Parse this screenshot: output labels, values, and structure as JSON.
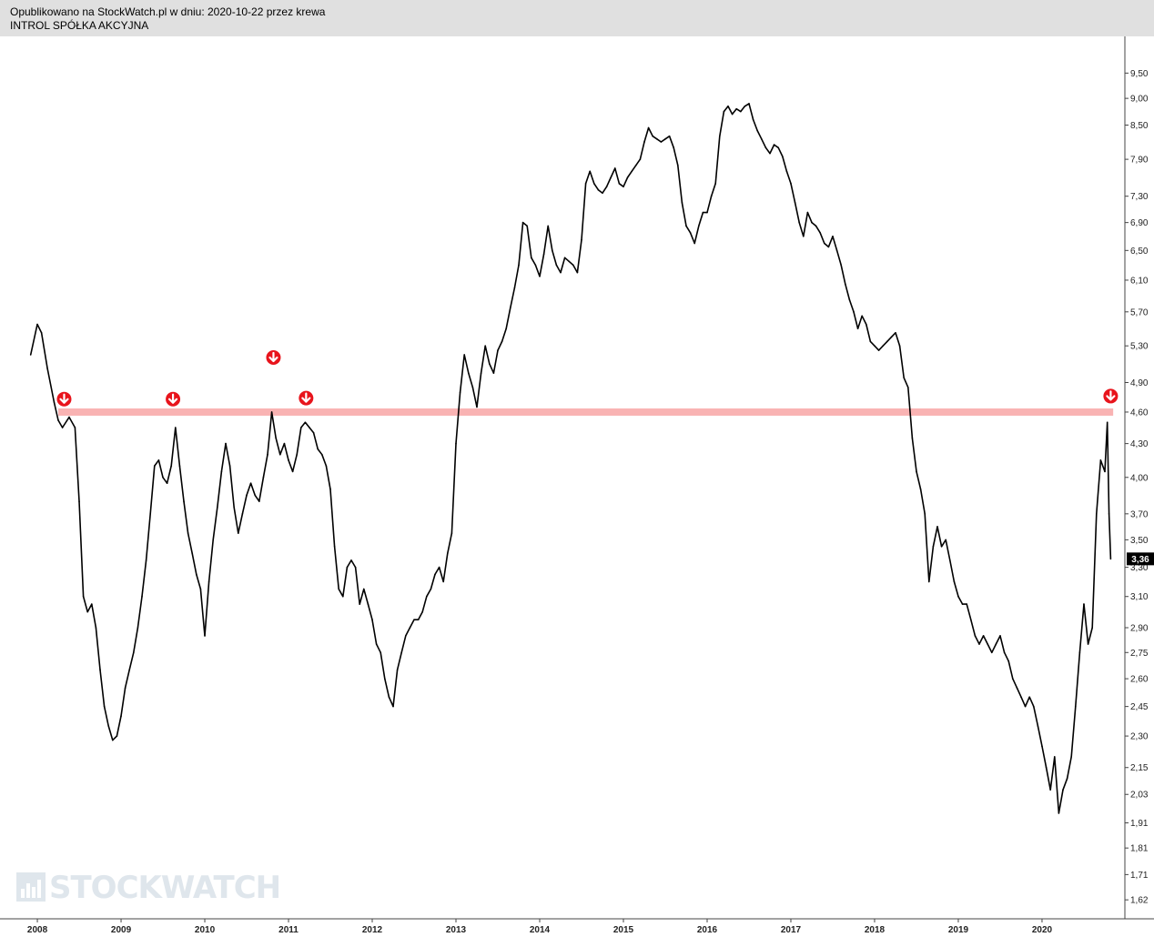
{
  "header": {
    "line1": "Opublikowano na StockWatch.pl w dniu: 2020-10-22 przez krewa",
    "line2": "INTROL SPÓŁKA AKCYJNA"
  },
  "watermark": "STOCKWATCH",
  "colors": {
    "line": "#000000",
    "resistance": "#f9b3b3",
    "arrow": "#e8141c",
    "price_badge": "#000000"
  },
  "chart_data": {
    "type": "line",
    "title": "INTROL SPÓŁKA AKCYJNA",
    "xlabel": "",
    "ylabel": "",
    "y_scale": "log",
    "ylim": [
      1.58,
      10.0
    ],
    "xlim": [
      2007.88,
      2020.87
    ],
    "y_ticks": [
      "9,50",
      "9,00",
      "8,50",
      "7,90",
      "7,30",
      "6,90",
      "6,50",
      "6,10",
      "5,70",
      "5,30",
      "4,90",
      "4,60",
      "4,30",
      "4,00",
      "3,70",
      "3,50",
      "3,30",
      "3,10",
      "2,90",
      "2,75",
      "2,60",
      "2,45",
      "2,30",
      "2,15",
      "2,03",
      "1,91",
      "1,81",
      "1,71",
      "1,62"
    ],
    "x_ticks": [
      "2008",
      "2009",
      "2010",
      "2011",
      "2012",
      "2013",
      "2014",
      "2015",
      "2016",
      "2017",
      "2018",
      "2019",
      "2020"
    ],
    "last_price_label": "3,36",
    "resistance_level": 4.6,
    "sell_signals": [
      {
        "x": 2008.32,
        "y": 4.62
      },
      {
        "x": 2009.62,
        "y": 4.62
      },
      {
        "x": 2010.82,
        "y": 5.05
      },
      {
        "x": 2011.21,
        "y": 4.63
      },
      {
        "x": 2020.82,
        "y": 4.65
      }
    ],
    "series": [
      {
        "values": [
          [
            2007.92,
            5.2
          ],
          [
            2008.0,
            5.55
          ],
          [
            2008.05,
            5.45
          ],
          [
            2008.12,
            5.05
          ],
          [
            2008.2,
            4.7
          ],
          [
            2008.25,
            4.52
          ],
          [
            2008.3,
            4.45
          ],
          [
            2008.38,
            4.55
          ],
          [
            2008.45,
            4.45
          ],
          [
            2008.5,
            3.8
          ],
          [
            2008.55,
            3.1
          ],
          [
            2008.6,
            3.0
          ],
          [
            2008.65,
            3.05
          ],
          [
            2008.7,
            2.9
          ],
          [
            2008.75,
            2.65
          ],
          [
            2008.8,
            2.45
          ],
          [
            2008.85,
            2.35
          ],
          [
            2008.9,
            2.28
          ],
          [
            2008.95,
            2.3
          ],
          [
            2009.0,
            2.4
          ],
          [
            2009.05,
            2.55
          ],
          [
            2009.1,
            2.65
          ],
          [
            2009.15,
            2.75
          ],
          [
            2009.2,
            2.9
          ],
          [
            2009.25,
            3.1
          ],
          [
            2009.3,
            3.35
          ],
          [
            2009.35,
            3.7
          ],
          [
            2009.4,
            4.1
          ],
          [
            2009.45,
            4.15
          ],
          [
            2009.5,
            4.0
          ],
          [
            2009.55,
            3.95
          ],
          [
            2009.6,
            4.1
          ],
          [
            2009.65,
            4.45
          ],
          [
            2009.7,
            4.1
          ],
          [
            2009.75,
            3.8
          ],
          [
            2009.8,
            3.55
          ],
          [
            2009.85,
            3.4
          ],
          [
            2009.9,
            3.25
          ],
          [
            2009.95,
            3.15
          ],
          [
            2010.0,
            2.85
          ],
          [
            2010.05,
            3.2
          ],
          [
            2010.1,
            3.5
          ],
          [
            2010.15,
            3.75
          ],
          [
            2010.2,
            4.05
          ],
          [
            2010.25,
            4.3
          ],
          [
            2010.3,
            4.1
          ],
          [
            2010.35,
            3.75
          ],
          [
            2010.4,
            3.55
          ],
          [
            2010.45,
            3.7
          ],
          [
            2010.5,
            3.85
          ],
          [
            2010.55,
            3.95
          ],
          [
            2010.6,
            3.85
          ],
          [
            2010.65,
            3.8
          ],
          [
            2010.7,
            4.0
          ],
          [
            2010.75,
            4.2
          ],
          [
            2010.8,
            4.6
          ],
          [
            2010.85,
            4.35
          ],
          [
            2010.9,
            4.2
          ],
          [
            2010.95,
            4.3
          ],
          [
            2011.0,
            4.15
          ],
          [
            2011.05,
            4.05
          ],
          [
            2011.1,
            4.2
          ],
          [
            2011.15,
            4.45
          ],
          [
            2011.2,
            4.5
          ],
          [
            2011.25,
            4.45
          ],
          [
            2011.3,
            4.4
          ],
          [
            2011.35,
            4.25
          ],
          [
            2011.4,
            4.2
          ],
          [
            2011.45,
            4.1
          ],
          [
            2011.5,
            3.9
          ],
          [
            2011.55,
            3.45
          ],
          [
            2011.6,
            3.15
          ],
          [
            2011.65,
            3.1
          ],
          [
            2011.7,
            3.3
          ],
          [
            2011.75,
            3.35
          ],
          [
            2011.8,
            3.3
          ],
          [
            2011.85,
            3.05
          ],
          [
            2011.9,
            3.15
          ],
          [
            2011.95,
            3.05
          ],
          [
            2012.0,
            2.95
          ],
          [
            2012.05,
            2.8
          ],
          [
            2012.1,
            2.75
          ],
          [
            2012.15,
            2.6
          ],
          [
            2012.2,
            2.5
          ],
          [
            2012.25,
            2.45
          ],
          [
            2012.3,
            2.65
          ],
          [
            2012.35,
            2.75
          ],
          [
            2012.4,
            2.85
          ],
          [
            2012.45,
            2.9
          ],
          [
            2012.5,
            2.95
          ],
          [
            2012.55,
            2.95
          ],
          [
            2012.6,
            3.0
          ],
          [
            2012.65,
            3.1
          ],
          [
            2012.7,
            3.15
          ],
          [
            2012.75,
            3.25
          ],
          [
            2012.8,
            3.3
          ],
          [
            2012.85,
            3.2
          ],
          [
            2012.9,
            3.4
          ],
          [
            2012.95,
            3.55
          ],
          [
            2013.0,
            4.3
          ],
          [
            2013.05,
            4.8
          ],
          [
            2013.1,
            5.2
          ],
          [
            2013.15,
            5.0
          ],
          [
            2013.2,
            4.85
          ],
          [
            2013.25,
            4.65
          ],
          [
            2013.3,
            5.0
          ],
          [
            2013.35,
            5.3
          ],
          [
            2013.4,
            5.1
          ],
          [
            2013.45,
            5.0
          ],
          [
            2013.5,
            5.25
          ],
          [
            2013.55,
            5.35
          ],
          [
            2013.6,
            5.5
          ],
          [
            2013.65,
            5.75
          ],
          [
            2013.7,
            6.0
          ],
          [
            2013.75,
            6.3
          ],
          [
            2013.8,
            6.9
          ],
          [
            2013.85,
            6.85
          ],
          [
            2013.9,
            6.4
          ],
          [
            2013.95,
            6.3
          ],
          [
            2014.0,
            6.15
          ],
          [
            2014.05,
            6.45
          ],
          [
            2014.1,
            6.85
          ],
          [
            2014.15,
            6.5
          ],
          [
            2014.2,
            6.3
          ],
          [
            2014.25,
            6.2
          ],
          [
            2014.3,
            6.4
          ],
          [
            2014.35,
            6.35
          ],
          [
            2014.4,
            6.3
          ],
          [
            2014.45,
            6.2
          ],
          [
            2014.5,
            6.65
          ],
          [
            2014.55,
            7.5
          ],
          [
            2014.6,
            7.7
          ],
          [
            2014.65,
            7.5
          ],
          [
            2014.7,
            7.4
          ],
          [
            2014.75,
            7.35
          ],
          [
            2014.8,
            7.45
          ],
          [
            2014.85,
            7.6
          ],
          [
            2014.9,
            7.75
          ],
          [
            2014.95,
            7.5
          ],
          [
            2015.0,
            7.45
          ],
          [
            2015.05,
            7.6
          ],
          [
            2015.1,
            7.7
          ],
          [
            2015.15,
            7.8
          ],
          [
            2015.2,
            7.9
          ],
          [
            2015.25,
            8.2
          ],
          [
            2015.3,
            8.45
          ],
          [
            2015.35,
            8.3
          ],
          [
            2015.4,
            8.25
          ],
          [
            2015.45,
            8.2
          ],
          [
            2015.5,
            8.25
          ],
          [
            2015.55,
            8.3
          ],
          [
            2015.6,
            8.1
          ],
          [
            2015.65,
            7.8
          ],
          [
            2015.7,
            7.2
          ],
          [
            2015.75,
            6.85
          ],
          [
            2015.8,
            6.75
          ],
          [
            2015.85,
            6.6
          ],
          [
            2015.9,
            6.85
          ],
          [
            2015.95,
            7.05
          ],
          [
            2016.0,
            7.05
          ],
          [
            2016.05,
            7.3
          ],
          [
            2016.1,
            7.5
          ],
          [
            2016.15,
            8.3
          ],
          [
            2016.2,
            8.75
          ],
          [
            2016.25,
            8.85
          ],
          [
            2016.3,
            8.7
          ],
          [
            2016.35,
            8.8
          ],
          [
            2016.4,
            8.75
          ],
          [
            2016.45,
            8.85
          ],
          [
            2016.5,
            8.9
          ],
          [
            2016.55,
            8.6
          ],
          [
            2016.6,
            8.4
          ],
          [
            2016.65,
            8.25
          ],
          [
            2016.7,
            8.1
          ],
          [
            2016.75,
            8.0
          ],
          [
            2016.8,
            8.15
          ],
          [
            2016.85,
            8.1
          ],
          [
            2016.9,
            7.95
          ],
          [
            2016.95,
            7.7
          ],
          [
            2017.0,
            7.5
          ],
          [
            2017.05,
            7.2
          ],
          [
            2017.1,
            6.9
          ],
          [
            2017.15,
            6.7
          ],
          [
            2017.2,
            7.05
          ],
          [
            2017.25,
            6.9
          ],
          [
            2017.3,
            6.85
          ],
          [
            2017.35,
            6.75
          ],
          [
            2017.4,
            6.6
          ],
          [
            2017.45,
            6.55
          ],
          [
            2017.5,
            6.7
          ],
          [
            2017.55,
            6.5
          ],
          [
            2017.6,
            6.3
          ],
          [
            2017.65,
            6.05
          ],
          [
            2017.7,
            5.85
          ],
          [
            2017.75,
            5.7
          ],
          [
            2017.8,
            5.5
          ],
          [
            2017.85,
            5.65
          ],
          [
            2017.9,
            5.55
          ],
          [
            2017.95,
            5.35
          ],
          [
            2018.0,
            5.3
          ],
          [
            2018.05,
            5.25
          ],
          [
            2018.1,
            5.3
          ],
          [
            2018.15,
            5.35
          ],
          [
            2018.2,
            5.4
          ],
          [
            2018.25,
            5.45
          ],
          [
            2018.3,
            5.3
          ],
          [
            2018.35,
            4.95
          ],
          [
            2018.4,
            4.85
          ],
          [
            2018.45,
            4.35
          ],
          [
            2018.5,
            4.05
          ],
          [
            2018.55,
            3.9
          ],
          [
            2018.6,
            3.7
          ],
          [
            2018.65,
            3.2
          ],
          [
            2018.7,
            3.45
          ],
          [
            2018.75,
            3.6
          ],
          [
            2018.8,
            3.45
          ],
          [
            2018.85,
            3.5
          ],
          [
            2018.9,
            3.35
          ],
          [
            2018.95,
            3.2
          ],
          [
            2019.0,
            3.1
          ],
          [
            2019.05,
            3.05
          ],
          [
            2019.1,
            3.05
          ],
          [
            2019.15,
            2.95
          ],
          [
            2019.2,
            2.85
          ],
          [
            2019.25,
            2.8
          ],
          [
            2019.3,
            2.85
          ],
          [
            2019.35,
            2.8
          ],
          [
            2019.4,
            2.75
          ],
          [
            2019.45,
            2.8
          ],
          [
            2019.5,
            2.85
          ],
          [
            2019.55,
            2.75
          ],
          [
            2019.6,
            2.7
          ],
          [
            2019.65,
            2.6
          ],
          [
            2019.7,
            2.55
          ],
          [
            2019.75,
            2.5
          ],
          [
            2019.8,
            2.45
          ],
          [
            2019.85,
            2.5
          ],
          [
            2019.9,
            2.45
          ],
          [
            2019.95,
            2.35
          ],
          [
            2020.0,
            2.25
          ],
          [
            2020.05,
            2.15
          ],
          [
            2020.1,
            2.05
          ],
          [
            2020.15,
            2.2
          ],
          [
            2020.2,
            1.95
          ],
          [
            2020.25,
            2.05
          ],
          [
            2020.3,
            2.1
          ],
          [
            2020.35,
            2.2
          ],
          [
            2020.4,
            2.45
          ],
          [
            2020.45,
            2.75
          ],
          [
            2020.5,
            3.05
          ],
          [
            2020.55,
            2.8
          ],
          [
            2020.6,
            2.9
          ],
          [
            2020.65,
            3.7
          ],
          [
            2020.7,
            4.15
          ],
          [
            2020.75,
            4.05
          ],
          [
            2020.78,
            4.5
          ],
          [
            2020.8,
            3.7
          ],
          [
            2020.82,
            3.36
          ]
        ]
      }
    ]
  }
}
